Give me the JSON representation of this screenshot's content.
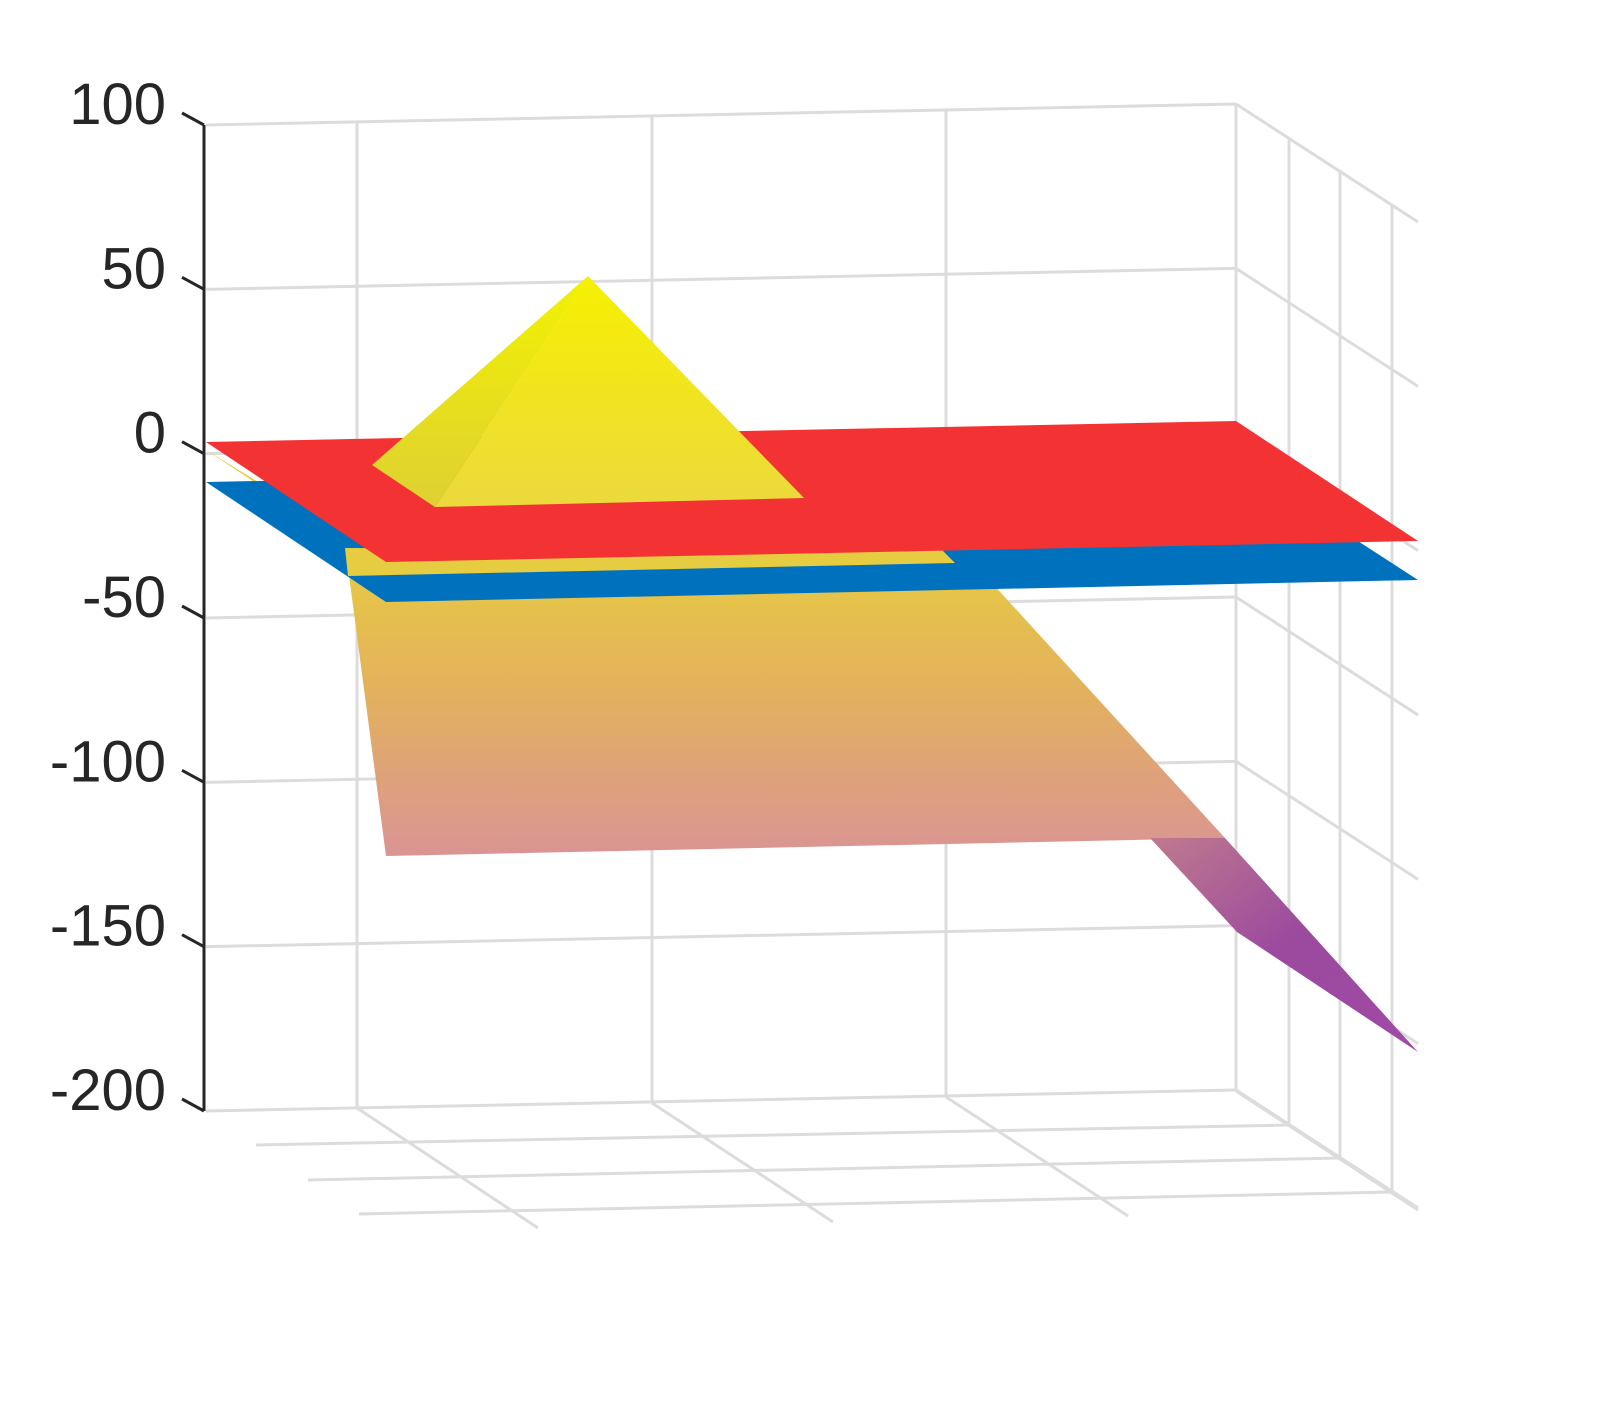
{
  "chart_data": {
    "type": "surface3d",
    "title": "",
    "xlabel": "",
    "ylabel": "",
    "zlabel": "",
    "zlim": [
      -200,
      100
    ],
    "z_ticks": [
      100,
      50,
      0,
      -50,
      -100,
      -150,
      -200
    ],
    "z_tick_labels": [
      "100",
      "50",
      "0",
      "-50",
      "-100",
      "-150",
      "-200"
    ],
    "grid": true,
    "view": "near-frontal 3D, slight elevation",
    "surfaces": [
      {
        "id": "sloped-surface",
        "z_range": [
          -190,
          -5
        ],
        "colormap": [
          "#f2f200",
          "#e8c84a",
          "#dd9090",
          "#9b4a9e"
        ]
      },
      {
        "id": "blue-plane",
        "z": -10,
        "color": "#0072bd"
      },
      {
        "id": "red-plane",
        "z": 0,
        "color": "#f33333"
      },
      {
        "id": "pyramid",
        "z_peak": 52,
        "z_base": -10,
        "color": "#f2e030"
      }
    ]
  }
}
